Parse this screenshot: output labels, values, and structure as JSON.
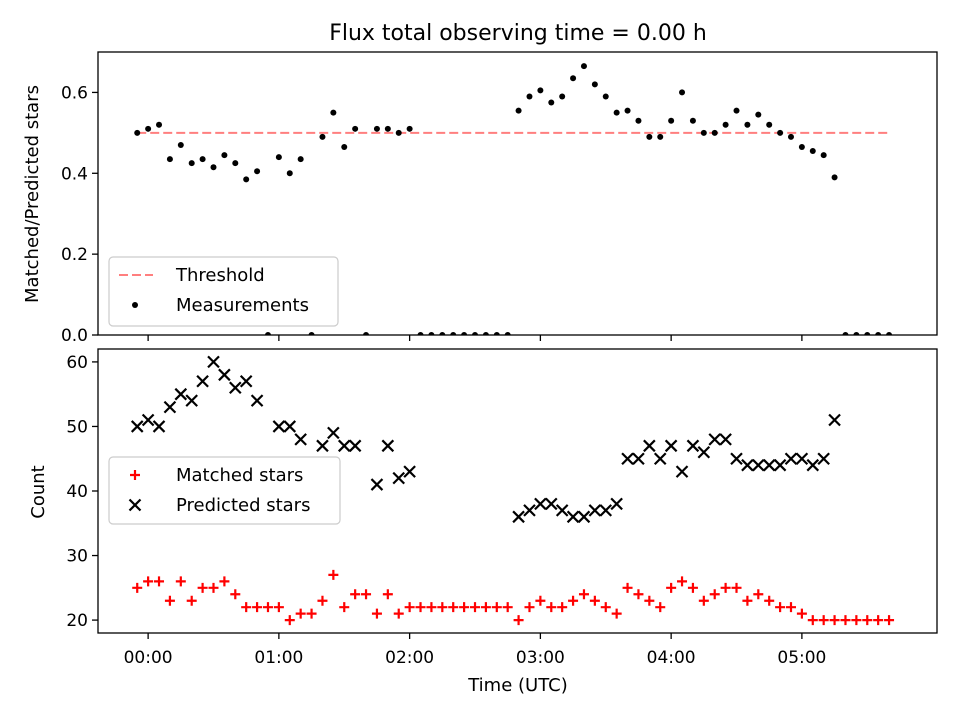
{
  "chart_data": [
    {
      "type": "scatter",
      "title": "Flux total observing time = 0.00 h",
      "xlabel": "",
      "ylabel": "Matched/Predicted stars",
      "ylim": [
        0,
        0.7
      ],
      "yticks": [
        "0.0",
        "0.2",
        "0.4",
        "0.6"
      ],
      "ytick_values": [
        0,
        0.2,
        0.4,
        0.6
      ],
      "grid": false,
      "legend_position": "lower-left",
      "threshold": {
        "name": "Threshold",
        "value": 0.5,
        "x_start": "23:55",
        "x_end": "05:40",
        "color": "#ff7f7f"
      },
      "series": [
        {
          "name": "Measurements",
          "color": "#000000",
          "points": [
            [
              "23:55",
              0.5
            ],
            [
              "00:00",
              0.51
            ],
            [
              "00:05",
              0.52
            ],
            [
              "00:10",
              0.435
            ],
            [
              "00:15",
              0.47
            ],
            [
              "00:20",
              0.425
            ],
            [
              "00:25",
              0.435
            ],
            [
              "00:30",
              0.415
            ],
            [
              "00:35",
              0.445
            ],
            [
              "00:40",
              0.425
            ],
            [
              "00:45",
              0.385
            ],
            [
              "00:50",
              0.405
            ],
            [
              "00:55",
              0.0
            ],
            [
              "01:00",
              0.44
            ],
            [
              "01:05",
              0.4
            ],
            [
              "01:10",
              0.435
            ],
            [
              "01:15",
              0.0
            ],
            [
              "01:20",
              0.49
            ],
            [
              "01:25",
              0.55
            ],
            [
              "01:30",
              0.465
            ],
            [
              "01:35",
              0.51
            ],
            [
              "01:40",
              0.0
            ],
            [
              "01:45",
              0.51
            ],
            [
              "01:50",
              0.51
            ],
            [
              "01:55",
              0.5
            ],
            [
              "02:00",
              0.51
            ],
            [
              "02:05",
              0.0
            ],
            [
              "02:10",
              0.0
            ],
            [
              "02:15",
              0.0
            ],
            [
              "02:20",
              0.0
            ],
            [
              "02:25",
              0.0
            ],
            [
              "02:30",
              0.0
            ],
            [
              "02:35",
              0.0
            ],
            [
              "02:40",
              0.0
            ],
            [
              "02:45",
              0.0
            ],
            [
              "02:50",
              0.555
            ],
            [
              "02:55",
              0.59
            ],
            [
              "03:00",
              0.605
            ],
            [
              "03:05",
              0.575
            ],
            [
              "03:10",
              0.59
            ],
            [
              "03:15",
              0.635
            ],
            [
              "03:20",
              0.665
            ],
            [
              "03:25",
              0.62
            ],
            [
              "03:30",
              0.59
            ],
            [
              "03:35",
              0.55
            ],
            [
              "03:40",
              0.555
            ],
            [
              "03:45",
              0.53
            ],
            [
              "03:50",
              0.49
            ],
            [
              "03:55",
              0.49
            ],
            [
              "04:00",
              0.53
            ],
            [
              "04:05",
              0.6
            ],
            [
              "04:10",
              0.53
            ],
            [
              "04:15",
              0.5
            ],
            [
              "04:20",
              0.5
            ],
            [
              "04:25",
              0.52
            ],
            [
              "04:30",
              0.555
            ],
            [
              "04:35",
              0.52
            ],
            [
              "04:40",
              0.545
            ],
            [
              "04:45",
              0.52
            ],
            [
              "04:50",
              0.5
            ],
            [
              "04:55",
              0.49
            ],
            [
              "05:00",
              0.465
            ],
            [
              "05:05",
              0.455
            ],
            [
              "05:10",
              0.445
            ],
            [
              "05:15",
              0.39
            ],
            [
              "05:20",
              0.0
            ],
            [
              "05:25",
              0.0
            ],
            [
              "05:30",
              0.0
            ],
            [
              "05:35",
              0.0
            ],
            [
              "05:40",
              0.0
            ]
          ]
        }
      ]
    },
    {
      "type": "scatter",
      "title": "",
      "xlabel": "Time (UTC)",
      "ylabel": "Count",
      "ylim": [
        18,
        62
      ],
      "yticks": [
        "20",
        "30",
        "40",
        "50",
        "60"
      ],
      "ytick_values": [
        20,
        30,
        40,
        50,
        60
      ],
      "xlim": [
        "23:37",
        "06:02"
      ],
      "xticks": [
        "00:00",
        "01:00",
        "02:00",
        "03:00",
        "04:00",
        "05:00"
      ],
      "grid": false,
      "legend_position": "center-left",
      "series": [
        {
          "name": "Matched stars",
          "marker": "+",
          "color": "#ff0000",
          "points": [
            [
              "23:55",
              25
            ],
            [
              "00:00",
              26
            ],
            [
              "00:05",
              26
            ],
            [
              "00:10",
              23
            ],
            [
              "00:15",
              26
            ],
            [
              "00:20",
              23
            ],
            [
              "00:25",
              25
            ],
            [
              "00:30",
              25
            ],
            [
              "00:35",
              26
            ],
            [
              "00:40",
              24
            ],
            [
              "00:45",
              22
            ],
            [
              "00:50",
              22
            ],
            [
              "00:55",
              22
            ],
            [
              "01:00",
              22
            ],
            [
              "01:05",
              20
            ],
            [
              "01:10",
              21
            ],
            [
              "01:15",
              21
            ],
            [
              "01:20",
              23
            ],
            [
              "01:25",
              27
            ],
            [
              "01:30",
              22
            ],
            [
              "01:35",
              24
            ],
            [
              "01:40",
              24
            ],
            [
              "01:45",
              21
            ],
            [
              "01:50",
              24
            ],
            [
              "01:55",
              21
            ],
            [
              "02:00",
              22
            ],
            [
              "02:05",
              22
            ],
            [
              "02:10",
              22
            ],
            [
              "02:15",
              22
            ],
            [
              "02:20",
              22
            ],
            [
              "02:25",
              22
            ],
            [
              "02:30",
              22
            ],
            [
              "02:35",
              22
            ],
            [
              "02:40",
              22
            ],
            [
              "02:45",
              22
            ],
            [
              "02:50",
              20
            ],
            [
              "02:55",
              22
            ],
            [
              "03:00",
              23
            ],
            [
              "03:05",
              22
            ],
            [
              "03:10",
              22
            ],
            [
              "03:15",
              23
            ],
            [
              "03:20",
              24
            ],
            [
              "03:25",
              23
            ],
            [
              "03:30",
              22
            ],
            [
              "03:35",
              21
            ],
            [
              "03:40",
              25
            ],
            [
              "03:45",
              24
            ],
            [
              "03:50",
              23
            ],
            [
              "03:55",
              22
            ],
            [
              "04:00",
              25
            ],
            [
              "04:05",
              26
            ],
            [
              "04:10",
              25
            ],
            [
              "04:15",
              23
            ],
            [
              "04:20",
              24
            ],
            [
              "04:25",
              25
            ],
            [
              "04:30",
              25
            ],
            [
              "04:35",
              23
            ],
            [
              "04:40",
              24
            ],
            [
              "04:45",
              23
            ],
            [
              "04:50",
              22
            ],
            [
              "04:55",
              22
            ],
            [
              "05:00",
              21
            ],
            [
              "05:05",
              20
            ],
            [
              "05:10",
              20
            ],
            [
              "05:15",
              20
            ],
            [
              "05:20",
              20
            ],
            [
              "05:25",
              20
            ],
            [
              "05:30",
              20
            ],
            [
              "05:35",
              20
            ],
            [
              "05:40",
              20
            ]
          ]
        },
        {
          "name": "Predicted stars",
          "marker": "x",
          "color": "#000000",
          "points": [
            [
              "23:55",
              50
            ],
            [
              "00:00",
              51
            ],
            [
              "00:05",
              50
            ],
            [
              "00:10",
              53
            ],
            [
              "00:15",
              55
            ],
            [
              "00:20",
              54
            ],
            [
              "00:25",
              57
            ],
            [
              "00:30",
              60
            ],
            [
              "00:35",
              58
            ],
            [
              "00:40",
              56
            ],
            [
              "00:45",
              57
            ],
            [
              "00:50",
              54
            ],
            [
              "01:00",
              50
            ],
            [
              "01:05",
              50
            ],
            [
              "01:10",
              48
            ],
            [
              "01:20",
              47
            ],
            [
              "01:25",
              49
            ],
            [
              "01:30",
              47
            ],
            [
              "01:35",
              47
            ],
            [
              "01:45",
              41
            ],
            [
              "01:50",
              47
            ],
            [
              "01:55",
              42
            ],
            [
              "02:00",
              43
            ],
            [
              "02:50",
              36
            ],
            [
              "02:55",
              37
            ],
            [
              "03:00",
              38
            ],
            [
              "03:05",
              38
            ],
            [
              "03:10",
              37
            ],
            [
              "03:15",
              36
            ],
            [
              "03:20",
              36
            ],
            [
              "03:25",
              37
            ],
            [
              "03:30",
              37
            ],
            [
              "03:35",
              38
            ],
            [
              "03:40",
              45
            ],
            [
              "03:45",
              45
            ],
            [
              "03:50",
              47
            ],
            [
              "03:55",
              45
            ],
            [
              "04:00",
              47
            ],
            [
              "04:05",
              43
            ],
            [
              "04:10",
              47
            ],
            [
              "04:15",
              46
            ],
            [
              "04:20",
              48
            ],
            [
              "04:25",
              48
            ],
            [
              "04:30",
              45
            ],
            [
              "04:35",
              44
            ],
            [
              "04:40",
              44
            ],
            [
              "04:45",
              44
            ],
            [
              "04:50",
              44
            ],
            [
              "04:55",
              45
            ],
            [
              "05:00",
              45
            ],
            [
              "05:05",
              44
            ],
            [
              "05:10",
              45
            ],
            [
              "05:15",
              51
            ]
          ]
        }
      ]
    }
  ]
}
